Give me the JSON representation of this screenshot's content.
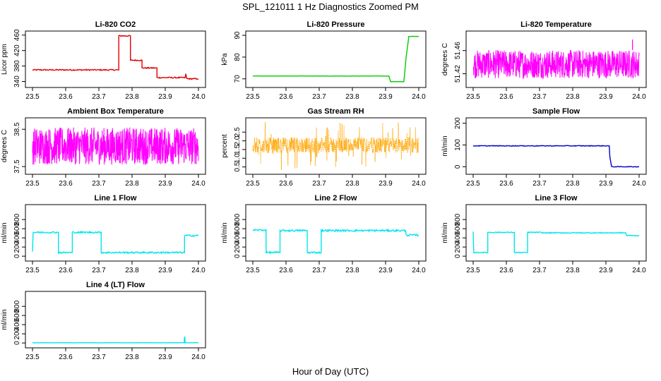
{
  "figure": {
    "title": "SPL_121011  1 Hz Diagnostics Zoomed PM",
    "xlabel": "Hour of Day (UTC)"
  },
  "chart_data": [
    {
      "type": "line",
      "title": "Li-820 CO2",
      "ylabel": "Licor ppm",
      "color": "#e00000",
      "xlim": [
        23.5,
        24.0
      ],
      "ylim": [
        330,
        465
      ],
      "xticks": [
        "23.5",
        "23.6",
        "23.7",
        "23.8",
        "23.9",
        "24.0"
      ],
      "yticks": [
        "340",
        "380",
        "420",
        "460"
      ],
      "x": [
        23.5,
        23.76,
        23.76,
        23.795,
        23.795,
        23.83,
        23.83,
        23.875,
        23.875,
        23.96,
        23.962,
        23.965,
        24.0
      ],
      "y": [
        370,
        370,
        458,
        458,
        395,
        395,
        375,
        375,
        350,
        350,
        360,
        347,
        347
      ],
      "noise": 1.5
    },
    {
      "type": "line",
      "title": "Li-820 Pressure",
      "ylabel": "kPa",
      "color": "#00cc00",
      "xlim": [
        23.5,
        24.0
      ],
      "ylim": [
        67,
        91
      ],
      "xticks": [
        "23.5",
        "23.6",
        "23.7",
        "23.8",
        "23.9",
        "24.0"
      ],
      "yticks": [
        "70",
        "80",
        "90"
      ],
      "x": [
        23.5,
        23.91,
        23.915,
        23.955,
        23.962,
        23.97,
        24.0
      ],
      "y": [
        71.3,
        71.3,
        68.7,
        68.7,
        80,
        89.5,
        89.5
      ],
      "noise": 0.05
    },
    {
      "type": "line",
      "title": "Li-820 Temperature",
      "ylabel": "degrees C",
      "color": "#ff00ff",
      "xlim": [
        23.5,
        24.0
      ],
      "ylim": [
        51.4,
        51.49
      ],
      "xticks": [
        "23.5",
        "23.6",
        "23.7",
        "23.8",
        "23.9",
        "24.0"
      ],
      "yticks": [
        "51.42",
        "51.46"
      ],
      "band": [
        51.412,
        51.461
      ],
      "spike": {
        "x": 23.98,
        "y": 51.479
      },
      "noise": 0
    },
    {
      "type": "line",
      "title": "Ambient Box Temperature",
      "ylabel": "degrees C",
      "color": "#ff00ff",
      "xlim": [
        23.5,
        24.0
      ],
      "ylim": [
        37.35,
        38.75
      ],
      "xticks": [
        "23.5",
        "23.6",
        "23.7",
        "23.8",
        "23.9",
        "24.0"
      ],
      "yticks": [
        "37.5",
        "38.5"
      ],
      "band": [
        37.55,
        38.55
      ],
      "noise": 0
    },
    {
      "type": "scatter",
      "title": "Gas Stream RH",
      "ylabel": "percent",
      "color": "#ffa500",
      "xlim": [
        23.5,
        24.0
      ],
      "ylim": [
        0.2,
        3.2
      ],
      "xticks": [
        "23.5",
        "23.6",
        "23.7",
        "23.8",
        "23.9",
        "24.0"
      ],
      "yticks": [
        "0.5",
        "1.0",
        "1.5",
        "2.0",
        "2.5"
      ],
      "band": [
        1.3,
        2.2
      ],
      "noise": 0
    },
    {
      "type": "line",
      "title": "Sample Flow",
      "ylabel": "ml/min",
      "color": "#0000cc",
      "xlim": [
        23.5,
        24.0
      ],
      "ylim": [
        -25,
        215
      ],
      "xticks": [
        "23.5",
        "23.6",
        "23.7",
        "23.8",
        "23.9",
        "24.0"
      ],
      "yticks": [
        "0",
        "100",
        "200"
      ],
      "x": [
        23.5,
        23.91,
        23.912,
        23.917,
        24.0
      ],
      "y": [
        96,
        96,
        45,
        0,
        0
      ],
      "noise": 1.5
    },
    {
      "type": "line",
      "title": "Line 1 Flow",
      "ylabel": "ml/min",
      "color": "#00e5ee",
      "xlim": [
        23.5,
        24.0
      ],
      "ylim": [
        -60,
        1080
      ],
      "xticks": [
        "23.5",
        "23.6",
        "23.7",
        "23.8",
        "23.9",
        "24.0"
      ],
      "yticks": [
        "0",
        "200",
        "400",
        "600",
        "800"
      ],
      "x": [
        23.5,
        23.5,
        23.502,
        23.578,
        23.578,
        23.62,
        23.62,
        23.707,
        23.707,
        23.958,
        23.958,
        24.0
      ],
      "y": [
        100,
        100,
        520,
        520,
        80,
        80,
        520,
        520,
        80,
        80,
        450,
        450
      ],
      "noise": 18
    },
    {
      "type": "line",
      "title": "Line 2 Flow",
      "ylabel": "ml/min",
      "color": "#00e5ee",
      "xlim": [
        23.5,
        24.0
      ],
      "ylim": [
        -60,
        1080
      ],
      "xticks": [
        "23.5",
        "23.6",
        "23.7",
        "23.8",
        "23.9",
        "24.0"
      ],
      "yticks": [
        "0",
        "200",
        "400",
        "600",
        "800"
      ],
      "x": [
        23.5,
        23.54,
        23.54,
        23.582,
        23.582,
        23.664,
        23.664,
        23.706,
        23.706,
        23.96,
        23.962,
        24.0
      ],
      "y": [
        570,
        570,
        80,
        80,
        560,
        560,
        80,
        80,
        560,
        560,
        460,
        460
      ],
      "noise": 20
    },
    {
      "type": "line",
      "title": "Line 3 Flow",
      "ylabel": "ml/min",
      "color": "#00e5ee",
      "xlim": [
        23.5,
        24.0
      ],
      "ylim": [
        -60,
        1080
      ],
      "xticks": [
        "23.5",
        "23.6",
        "23.7",
        "23.8",
        "23.9",
        "24.0"
      ],
      "yticks": [
        "0",
        "200",
        "400",
        "600",
        "800"
      ],
      "x": [
        23.5,
        23.5,
        23.502,
        23.544,
        23.544,
        23.624,
        23.624,
        23.664,
        23.664,
        23.705,
        23.705,
        23.96,
        23.962,
        24.0
      ],
      "y": [
        530,
        530,
        80,
        80,
        520,
        520,
        80,
        80,
        520,
        520,
        510,
        510,
        450,
        450
      ],
      "noise": 10
    },
    {
      "type": "line",
      "title": "Line 4 (LT) Flow",
      "ylabel": "ml/min",
      "color": "#00e5ee",
      "xlim": [
        23.5,
        24.0
      ],
      "ylim": [
        -60,
        1080
      ],
      "xticks": [
        "23.5",
        "23.6",
        "23.7",
        "23.8",
        "23.9",
        "24.0"
      ],
      "yticks": [
        "0",
        "200",
        "400",
        "600",
        "800"
      ],
      "x": [
        23.5,
        23.957,
        23.958,
        23.959,
        23.96,
        24.0
      ],
      "y": [
        5,
        5,
        130,
        130,
        5,
        5
      ],
      "noise": 2
    }
  ]
}
